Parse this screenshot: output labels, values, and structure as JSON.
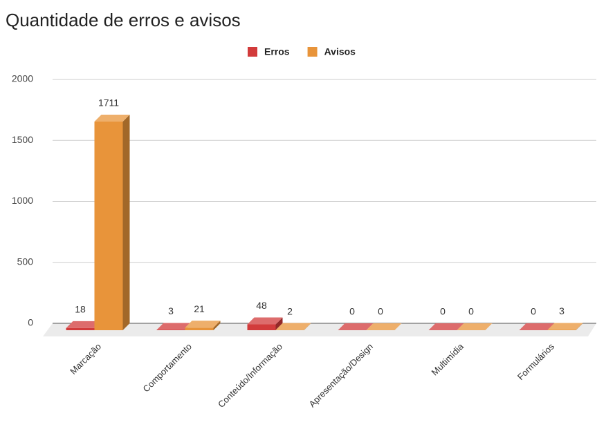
{
  "chart_data": {
    "type": "bar3d",
    "title": "Quantidade de erros e avisos",
    "categories": [
      "Marcação",
      "Comportamento",
      "Conteúdo/Informação",
      "Apresentação/Design",
      "Multimídia",
      "Formulários"
    ],
    "series": [
      {
        "name": "Erros",
        "color": "#d23b3b",
        "values": [
          18,
          3,
          48,
          0,
          0,
          0
        ]
      },
      {
        "name": "Avisos",
        "color": "#e8943a",
        "values": [
          1711,
          21,
          2,
          0,
          0,
          3
        ]
      }
    ],
    "ylim": [
      0,
      2000
    ],
    "yticks": [
      0,
      500,
      1000,
      1500,
      2000
    ],
    "grid": true,
    "legend": "top"
  }
}
